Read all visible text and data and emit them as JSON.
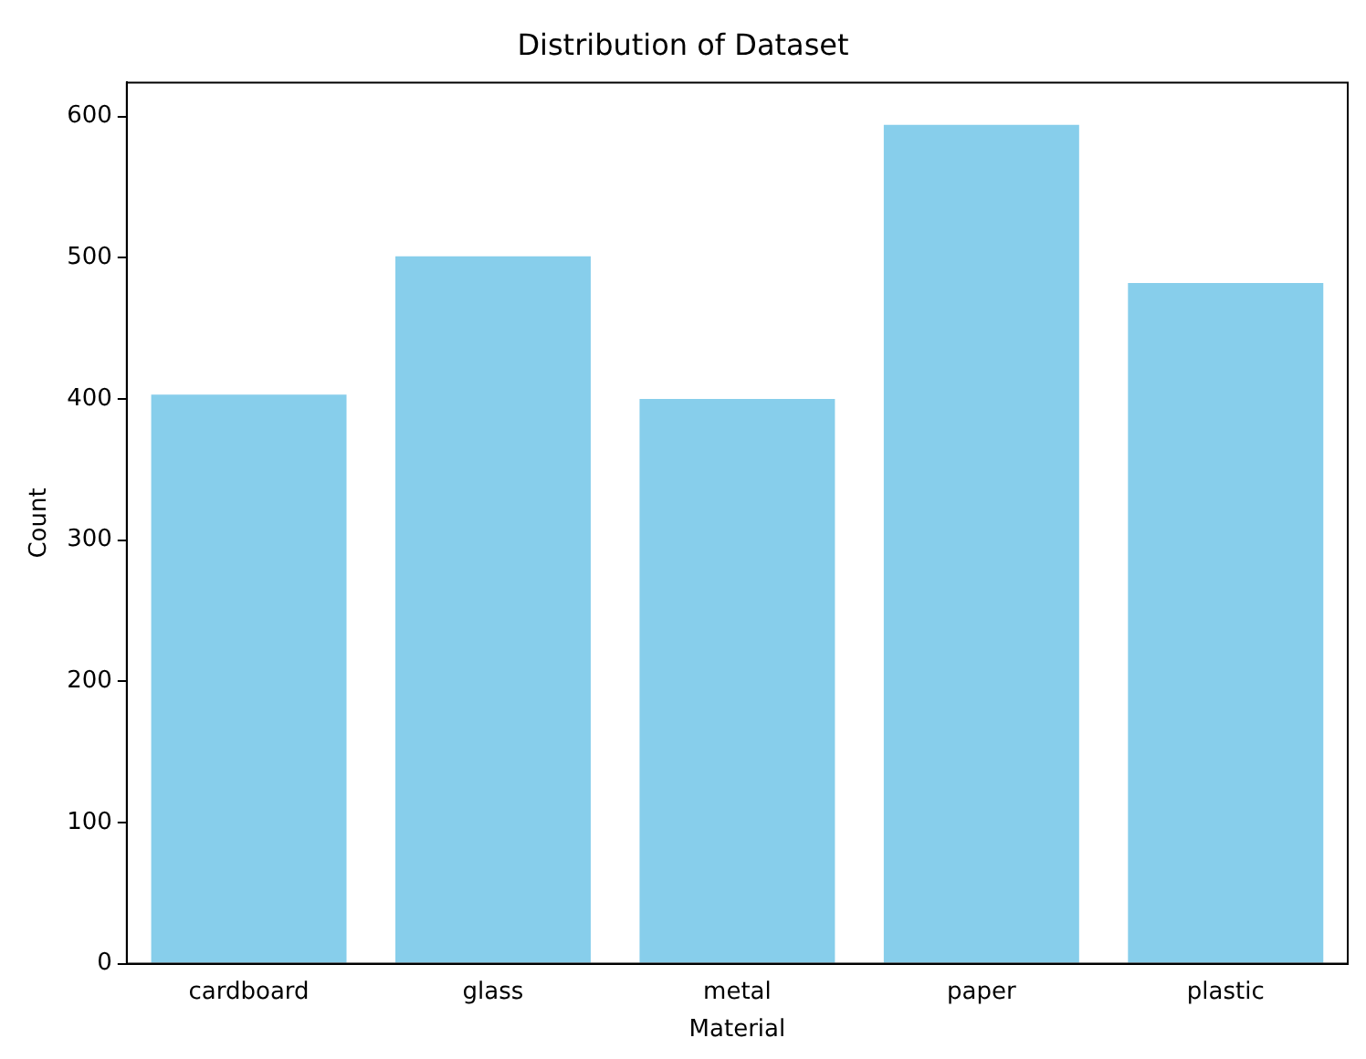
{
  "chart_data": {
    "type": "bar",
    "title": "Distribution of Dataset",
    "xlabel": "Material",
    "ylabel": "Count",
    "categories": [
      "cardboard",
      "glass",
      "metal",
      "paper",
      "plastic"
    ],
    "values": [
      403,
      501,
      400,
      594,
      482
    ],
    "color": "#87ceeb",
    "ylim": [
      0,
      624
    ],
    "yticks": [
      0,
      100,
      200,
      300,
      400,
      500,
      600
    ],
    "grid": false,
    "legend": false
  }
}
